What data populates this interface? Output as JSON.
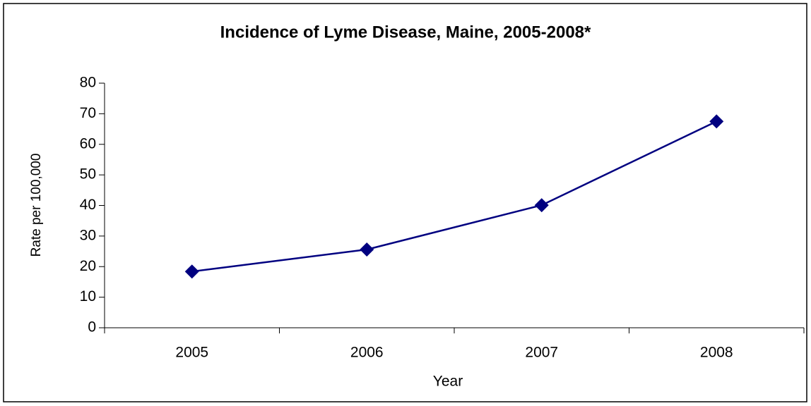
{
  "chart_data": {
    "type": "line",
    "title": "Incidence of Lyme Disease, Maine, 2005-2008*",
    "x_label": "Year",
    "y_label": "Rate per 100,000",
    "categories": [
      "2005",
      "2006",
      "2007",
      "2008"
    ],
    "series": [
      {
        "name": "Rate per 100,000",
        "color": "#000080",
        "values": [
          18.4,
          25.6,
          40.1,
          67.5
        ]
      }
    ],
    "ylim": [
      0,
      80
    ],
    "yticks": [
      0,
      10,
      20,
      30,
      40,
      50,
      60,
      70,
      80
    ],
    "grid": false
  }
}
